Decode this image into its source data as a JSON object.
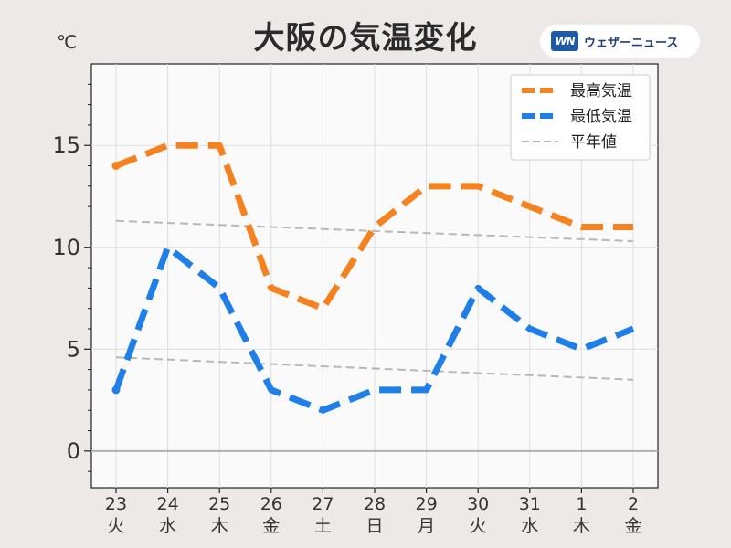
{
  "chart_data": {
    "type": "line",
    "title": "大阪の気温変化",
    "ylabel": "℃",
    "ylim": [
      -1.8,
      19
    ],
    "yticks": [
      0,
      5,
      10,
      15
    ],
    "grid": true,
    "legend_position": "top-right",
    "categories": [
      {
        "day": "23",
        "weekday": "火",
        "color": "#333333"
      },
      {
        "day": "24",
        "weekday": "水",
        "color": "#333333"
      },
      {
        "day": "25",
        "weekday": "木",
        "color": "#333333"
      },
      {
        "day": "26",
        "weekday": "金",
        "color": "#333333"
      },
      {
        "day": "27",
        "weekday": "土",
        "color": "#3a8ee0"
      },
      {
        "day": "28",
        "weekday": "日",
        "color": "#e0303a"
      },
      {
        "day": "29",
        "weekday": "月",
        "color": "#333333"
      },
      {
        "day": "30",
        "weekday": "火",
        "color": "#333333"
      },
      {
        "day": "31",
        "weekday": "水",
        "color": "#333333"
      },
      {
        "day": "1",
        "weekday": "木",
        "color": "#e0303a"
      },
      {
        "day": "2",
        "weekday": "金",
        "color": "#333333"
      }
    ],
    "series": [
      {
        "name": "最高気温",
        "color": "#f5821f",
        "style": "dashed-thick",
        "values": [
          14,
          15,
          15,
          8,
          7,
          11,
          13,
          13,
          12,
          11,
          11
        ]
      },
      {
        "name": "最低気温",
        "color": "#1f7fe8",
        "style": "dashed-thick",
        "values": [
          3,
          10,
          8,
          3,
          2,
          3,
          3,
          8,
          6,
          5,
          6
        ]
      },
      {
        "name": "平年値",
        "color": "#b8b8b8",
        "style": "dashed-thin",
        "values_high": [
          11.3,
          10.3
        ],
        "values_low": [
          4.6,
          3.5
        ]
      }
    ]
  },
  "header": {
    "unit": "℃",
    "brand_logo": "WN",
    "brand_name": "ウェザーニュース"
  }
}
